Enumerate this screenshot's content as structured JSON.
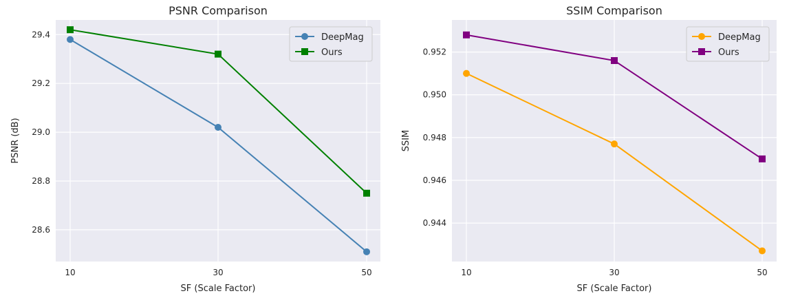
{
  "chart_data": [
    {
      "type": "line",
      "title": "PSNR Comparison",
      "xlabel": "SF (Scale Factor)",
      "ylabel": "PSNR (dB)",
      "x": [
        10,
        30,
        50
      ],
      "xticks": [
        "10",
        "30",
        "50"
      ],
      "ylim": [
        28.47,
        29.46
      ],
      "yticks": [
        "28.6",
        "28.8",
        "29.0",
        "29.2",
        "29.4"
      ],
      "grid": true,
      "legend": "top-right",
      "series": [
        {
          "name": "DeepMag",
          "values": [
            29.38,
            29.02,
            28.51
          ],
          "color": "#4682b4",
          "marker": "circle"
        },
        {
          "name": "Ours",
          "values": [
            29.42,
            29.32,
            28.75
          ],
          "color": "#008000",
          "marker": "square"
        }
      ]
    },
    {
      "type": "line",
      "title": "SSIM Comparison",
      "xlabel": "SF (Scale Factor)",
      "ylabel": "SSIM",
      "x": [
        10,
        30,
        50
      ],
      "xticks": [
        "10",
        "30",
        "50"
      ],
      "ylim": [
        0.9422,
        0.9535
      ],
      "yticks": [
        "0.944",
        "0.946",
        "0.948",
        "0.950",
        "0.952"
      ],
      "grid": true,
      "legend": "top-right",
      "series": [
        {
          "name": "DeepMag",
          "values": [
            0.951,
            0.9477,
            0.9427
          ],
          "color": "#ffa500",
          "marker": "circle"
        },
        {
          "name": "Ours",
          "values": [
            0.9528,
            0.9516,
            0.947
          ],
          "color": "#800080",
          "marker": "square"
        }
      ]
    }
  ]
}
